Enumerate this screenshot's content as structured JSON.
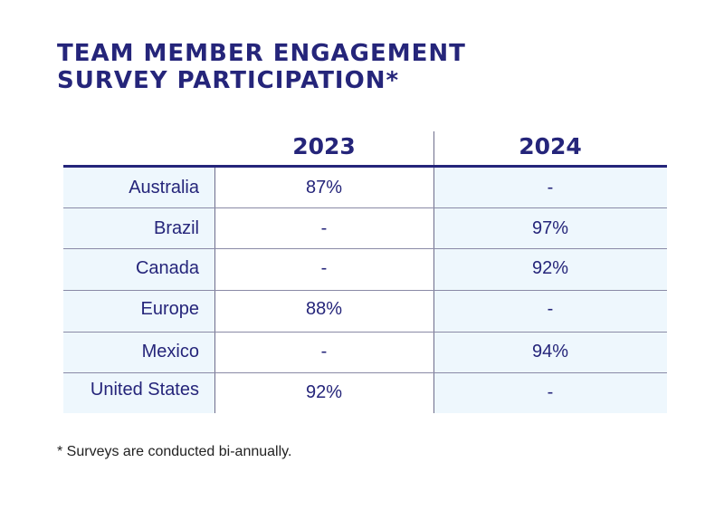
{
  "title": {
    "line1": "TEAM MEMBER ENGAGEMENT",
    "line2": "SURVEY PARTICIPATION*"
  },
  "table": {
    "columns": [
      "",
      "2023",
      "2024"
    ],
    "rows": [
      {
        "country": "Australia",
        "y2023": "87%",
        "y2024": "-"
      },
      {
        "country": "Brazil",
        "y2023": "-",
        "y2024": "97%"
      },
      {
        "country": "Canada",
        "y2023": "-",
        "y2024": "92%"
      },
      {
        "country": "Europe",
        "y2023": "88%",
        "y2024": "-"
      },
      {
        "country": "Mexico",
        "y2023": "-",
        "y2024": "94%"
      },
      {
        "country": "United States",
        "y2023": "92%",
        "y2024": "-"
      }
    ]
  },
  "colors": {
    "text": "#25257a",
    "shade": "#eef7fd",
    "rule": "#25257a"
  },
  "footnote": "* Surveys are conducted bi-annually."
}
